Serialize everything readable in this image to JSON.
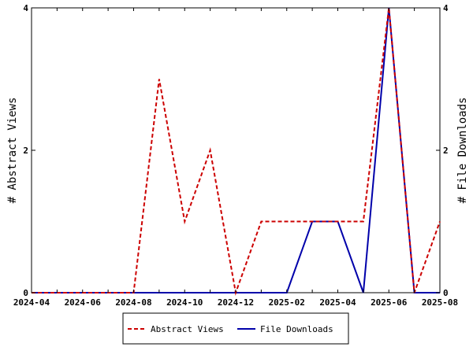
{
  "chart_data": {
    "type": "line",
    "title": "",
    "x": [
      "2024-04",
      "2024-05",
      "2024-06",
      "2024-07",
      "2024-08",
      "2024-09",
      "2024-10",
      "2024-11",
      "2024-12",
      "2025-01",
      "2025-02",
      "2025-03",
      "2025-04",
      "2025-05",
      "2025-06",
      "2025-07",
      "2025-08"
    ],
    "x_ticks": [
      "2024-04",
      "2024-06",
      "2024-08",
      "2024-10",
      "2024-12",
      "2025-02",
      "2025-04",
      "2025-06",
      "2025-08"
    ],
    "y_ticks": [
      0,
      2,
      4
    ],
    "ylim": [
      0,
      4
    ],
    "ylabel_left": "# Abstract Views",
    "ylabel_right": "# File Downloads",
    "legend_position": "bottom",
    "grid": false,
    "series": [
      {
        "name": "Abstract Views",
        "color": "#cc0000",
        "style": "dashed",
        "axis": "left",
        "values": [
          0,
          0,
          0,
          0,
          0,
          3,
          1,
          2,
          0,
          1,
          1,
          1,
          1,
          1,
          4,
          0,
          1
        ]
      },
      {
        "name": "File Downloads",
        "color": "#0000aa",
        "style": "solid",
        "axis": "right",
        "values": [
          0,
          0,
          0,
          0,
          0,
          0,
          0,
          0,
          0,
          0,
          0,
          1,
          1,
          0,
          4,
          0,
          0
        ]
      }
    ]
  }
}
